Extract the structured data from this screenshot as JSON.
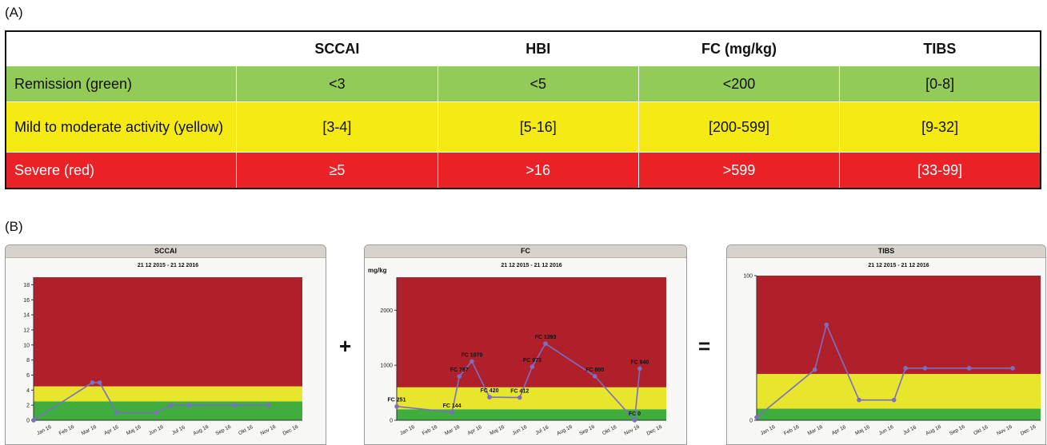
{
  "section_a_label": "(A)",
  "section_b_label": "(B)",
  "table": {
    "headers": [
      "",
      "SCCAI",
      "HBI",
      "FC (mg/kg)",
      "TIBS"
    ],
    "rows": [
      {
        "label": "Remission (green)",
        "values": [
          "<3",
          "<5",
          "<200",
          "[0-8]"
        ],
        "color": "#92cb57",
        "text_color": "#111111"
      },
      {
        "label": "Mild to moderate activity (yellow)",
        "values": [
          "[3-4]",
          "[5-16]",
          "[200-599]",
          "[9-32]"
        ],
        "color": "#f5ea14",
        "text_color": "#111111"
      },
      {
        "label": "Severe (red)",
        "values": [
          "≥5",
          ">16",
          ">599",
          "[33-99]"
        ],
        "color": "#ea2227",
        "text_color": "#ffffff"
      }
    ]
  },
  "operators": {
    "plus": "+",
    "equals": "="
  },
  "colors": {
    "red_zone": "#b0202a",
    "yellow_zone": "#e7e52c",
    "green_zone": "#3fae3f",
    "line": "#7b6fc4"
  },
  "chart_data": [
    {
      "type": "line",
      "title": "SCCAI",
      "subtitle": "21 12 2015 - 21 12 2016",
      "ylabel": "",
      "x": [
        "2015-12-21",
        "2016-03-10",
        "2016-03-20",
        "2016-04-12",
        "2016-06-05",
        "2016-06-25",
        "2016-07-20",
        "2016-09-20",
        "2016-11-05"
      ],
      "x_range": [
        "2015-12-21",
        "2016-12-21"
      ],
      "x_tick_labels": [
        "Jan 16",
        "Feb 16",
        "Mar 16",
        "Apr 16",
        "Maj 16",
        "Jun 16",
        "Jul 16",
        "Aug 16",
        "Sep 16",
        "Okt 16",
        "Nov 16",
        "Dec 16"
      ],
      "series": [
        {
          "values": [
            0,
            5,
            5,
            1,
            1,
            2,
            2,
            2,
            2
          ]
        }
      ],
      "ylim": [
        0,
        19
      ],
      "yticks": [
        0,
        2,
        4,
        6,
        8,
        10,
        12,
        14,
        16,
        18
      ],
      "bands": [
        {
          "from": 0,
          "to": 2.5,
          "zone": "green"
        },
        {
          "from": 2.5,
          "to": 4.5,
          "zone": "yellow"
        },
        {
          "from": 4.5,
          "to": 19,
          "zone": "red"
        }
      ],
      "point_labels": []
    },
    {
      "type": "line",
      "title": "FC",
      "subtitle": "21 12 2015 - 21 12 2016",
      "ylabel": "mg/kg",
      "x": [
        "2015-12-21",
        "2016-03-05",
        "2016-03-15",
        "2016-04-01",
        "2016-04-25",
        "2016-06-05",
        "2016-06-22",
        "2016-07-10",
        "2016-09-15",
        "2016-11-08",
        "2016-11-15"
      ],
      "x_range": [
        "2015-12-21",
        "2016-12-21"
      ],
      "x_tick_labels": [
        "Jan 16",
        "Feb 16",
        "Mar 16",
        "Apr 16",
        "Maj 16",
        "Jun 16",
        "Jul 16",
        "Aug 16",
        "Sep 16",
        "Okt 16",
        "Nov 16",
        "Dec 16"
      ],
      "series": [
        {
          "values": [
            251,
            144,
            797,
            1070,
            420,
            412,
            973,
            1393,
            800,
            0,
            940
          ]
        }
      ],
      "ylim": [
        0,
        2600
      ],
      "yticks": [
        0,
        1000,
        2000
      ],
      "bands": [
        {
          "from": 0,
          "to": 200,
          "zone": "green"
        },
        {
          "from": 200,
          "to": 599,
          "zone": "yellow"
        },
        {
          "from": 599,
          "to": 2600,
          "zone": "red"
        }
      ],
      "point_labels": [
        "FC 251",
        "FC 144",
        "FC 797",
        "FC 1070",
        "FC 420",
        "FC 412",
        "FC 973",
        "FC 1393",
        "FC 800",
        "FC 0",
        "FC 940"
      ]
    },
    {
      "type": "line",
      "title": "TIBS",
      "subtitle": "21 12 2015 - 21 12 2016",
      "ylabel": "",
      "x": [
        "2015-12-21",
        "2016-03-05",
        "2016-03-20",
        "2016-05-01",
        "2016-06-15",
        "2016-06-30",
        "2016-07-25",
        "2016-09-20",
        "2016-11-15"
      ],
      "x_range": [
        "2015-12-21",
        "2016-12-21"
      ],
      "x_tick_labels": [
        "Jan 16",
        "Feb 16",
        "Mar 16",
        "Apr 16",
        "Maj 16",
        "Jun 16",
        "Jul 16",
        "Aug 16",
        "Sep 16",
        "Okt 16",
        "Nov 16",
        "Dec 16"
      ],
      "series": [
        {
          "values": [
            2,
            35,
            66,
            14,
            14,
            36,
            36,
            36,
            36
          ]
        }
      ],
      "ylim": [
        0,
        100
      ],
      "yticks": [
        0,
        100
      ],
      "bands": [
        {
          "from": 0,
          "to": 8,
          "zone": "green"
        },
        {
          "from": 8,
          "to": 32,
          "zone": "yellow"
        },
        {
          "from": 32,
          "to": 100,
          "zone": "red"
        }
      ],
      "point_labels": []
    }
  ]
}
